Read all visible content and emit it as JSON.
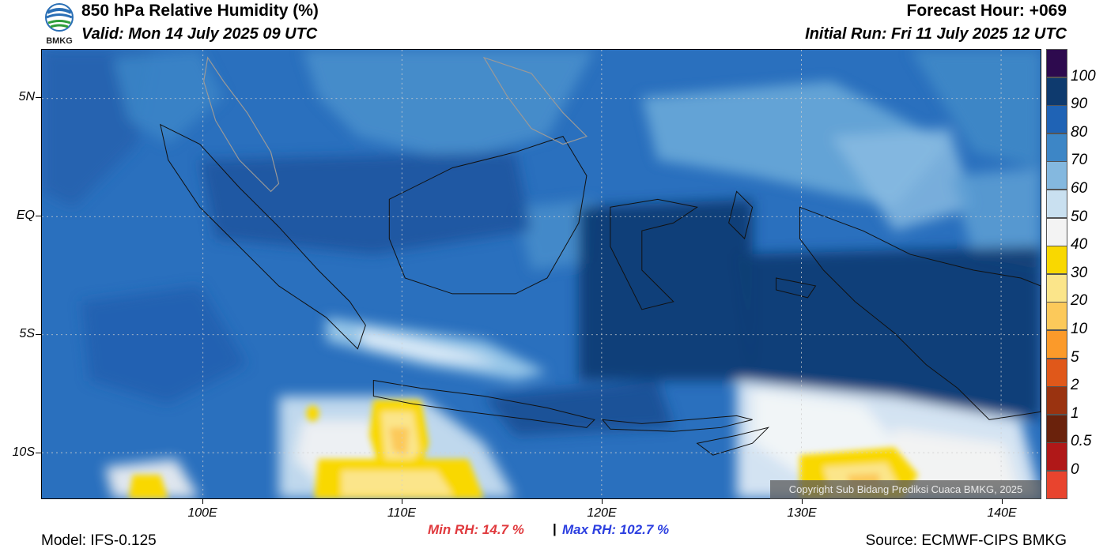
{
  "header": {
    "title": "850 hPa Relative Humidity (%)",
    "valid": "Valid: Mon 14 July 2025 09 UTC",
    "forecast_hour": "Forecast Hour: +069",
    "initial_run": "Initial Run: Fri 11 July 2025 12 UTC"
  },
  "logo": {
    "text": "BMKG",
    "icon": "bmkg-logo-icon"
  },
  "axes": {
    "lat_labels": [
      "5N",
      "EQ",
      "5S",
      "10S"
    ],
    "lon_labels": [
      "100E",
      "110E",
      "120E",
      "130E",
      "140E"
    ]
  },
  "colorbar": {
    "labels": [
      "100",
      "90",
      "80",
      "70",
      "60",
      "50",
      "40",
      "30",
      "20",
      "10",
      "5",
      "2",
      "1",
      "0.5",
      "0"
    ],
    "colors": [
      "#2d0a4e",
      "#0e3a6e",
      "#1f63b5",
      "#3d86c6",
      "#84b8df",
      "#c9e0f0",
      "#f3f3f3",
      "#f9d800",
      "#fbe58a",
      "#fcc95a",
      "#fb9a2a",
      "#e0581a",
      "#9a3310",
      "#6a220c",
      "#b01818",
      "#e8442e"
    ]
  },
  "stats": {
    "min_rh": "Min RH:  14.7 %",
    "separator": "|",
    "max_rh": "Max RH: 102.7 %"
  },
  "footer": {
    "model": "Model: IFS-0.125",
    "source": "Source: ECMWF-CIPS BMKG",
    "copyright": "Copyright Sub Bidang Prediksi Cuaca BMKG, 2025"
  }
}
